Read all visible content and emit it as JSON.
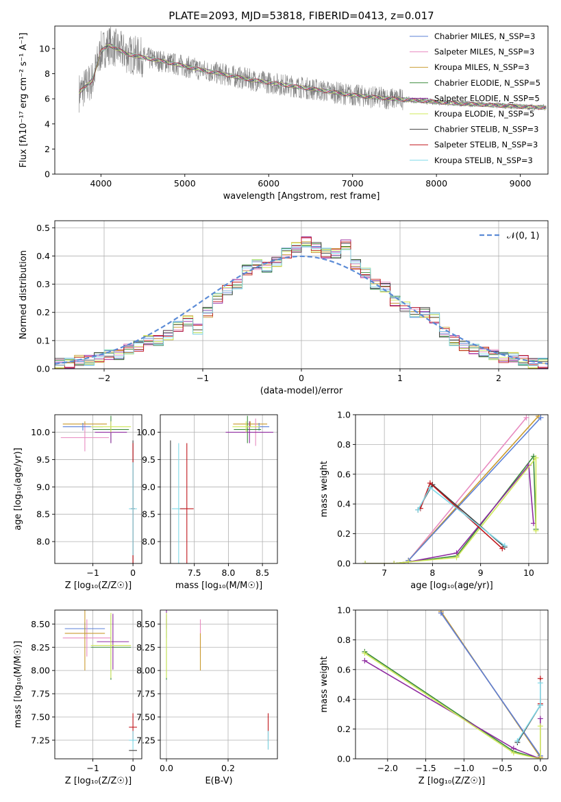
{
  "chart_data": [
    {
      "type": "line",
      "title": "PLATE=2093, MJD=53818, FIBERID=0413, z=0.017",
      "xlabel": "wavelength [Angstrom, rest frame]",
      "ylabel": "Flux [fλ10⁻¹⁷ erg cm⁻² s⁻¹ A⁻¹]",
      "xlim": [
        3450,
        9330
      ],
      "ylim": [
        0,
        11.8
      ],
      "xticks": [
        4000,
        5000,
        6000,
        7000,
        8000,
        9000
      ],
      "yticks": [
        0,
        2,
        4,
        6,
        8,
        10
      ],
      "grid": false,
      "legend_position": "top-right",
      "data_color": "#808080",
      "data_profile": {
        "x": [
          3740,
          3900,
          4000,
          4100,
          4300,
          4500,
          4800,
          5000,
          5200,
          5500,
          5800,
          6100,
          6400,
          6700,
          7000,
          7300,
          7600,
          7900,
          8200,
          8500,
          8800,
          9100,
          9310
        ],
        "y": [
          6.5,
          7.5,
          9.8,
          10.3,
          9.6,
          9.3,
          8.9,
          8.6,
          8.3,
          7.9,
          7.5,
          7.2,
          6.9,
          6.6,
          6.3,
          6.1,
          5.95,
          5.8,
          5.65,
          5.55,
          5.45,
          5.35,
          5.3
        ]
      },
      "series": [
        {
          "name": "Chabrier MILES, N_SSP=3",
          "color": "#5a7fd6"
        },
        {
          "name": "Salpeter MILES, N_SSP=3",
          "color": "#e88ac0"
        },
        {
          "name": "Kroupa MILES, N_SSP=3",
          "color": "#c99a2e"
        },
        {
          "name": "Chabrier ELODIE, N_SSP=5",
          "color": "#3a8a3a"
        },
        {
          "name": "Salpeter ELODIE, N_SSP=5",
          "color": "#8e2aa0"
        },
        {
          "name": "Kroupa ELODIE, N_SSP=5",
          "color": "#cfe85a"
        },
        {
          "name": "Chabrier STELIB, N_SSP=3",
          "color": "#404040"
        },
        {
          "name": "Salpeter STELIB, N_SSP=3",
          "color": "#c0151a"
        },
        {
          "name": "Kroupa STELIB, N_SSP=3",
          "color": "#7fd9e8"
        }
      ]
    },
    {
      "type": "line",
      "title": "",
      "xlabel": "(data-model)/error",
      "ylabel": "Normed distribution",
      "xlim": [
        -2.5,
        2.5
      ],
      "ylim": [
        0,
        0.525
      ],
      "xticks": [
        -2,
        -1,
        0,
        1,
        2
      ],
      "yticks": [
        0.0,
        0.1,
        0.2,
        0.3,
        0.4,
        0.5
      ],
      "grid": true,
      "legend_position": "top-right",
      "normal_curve": {
        "name": "𝒩(0, 1)",
        "color": "#5b8bd6",
        "mean": 0,
        "sd": 1
      },
      "bin_width": 0.1,
      "bin_left_edges": [
        -2.5,
        -2.4,
        -2.3,
        -2.2,
        -2.1,
        -2.0,
        -1.9,
        -1.8,
        -1.7,
        -1.6,
        -1.5,
        -1.4,
        -1.3,
        -1.2,
        -1.1,
        -1.0,
        -0.9,
        -0.8,
        -0.7,
        -0.6,
        -0.5,
        -0.4,
        -0.3,
        -0.2,
        -0.1,
        0.0,
        0.1,
        0.2,
        0.3,
        0.4,
        0.5,
        0.6,
        0.7,
        0.8,
        0.9,
        1.0,
        1.1,
        1.2,
        1.3,
        1.4,
        1.5,
        1.6,
        1.7,
        1.8,
        1.9,
        2.0,
        2.1,
        2.2,
        2.3,
        2.4
      ],
      "hist_values": [
        0.02,
        0.02,
        0.03,
        0.03,
        0.04,
        0.05,
        0.05,
        0.07,
        0.08,
        0.1,
        0.1,
        0.12,
        0.15,
        0.17,
        0.14,
        0.2,
        0.25,
        0.28,
        0.3,
        0.35,
        0.37,
        0.36,
        0.38,
        0.41,
        0.43,
        0.45,
        0.43,
        0.41,
        0.41,
        0.44,
        0.37,
        0.34,
        0.3,
        0.29,
        0.24,
        0.22,
        0.2,
        0.2,
        0.18,
        0.13,
        0.1,
        0.08,
        0.07,
        0.06,
        0.05,
        0.04,
        0.04,
        0.03,
        0.02,
        0.02
      ],
      "series_colors": [
        "#5a7fd6",
        "#e88ac0",
        "#c99a2e",
        "#3a8a3a",
        "#8e2aa0",
        "#cfe85a",
        "#404040",
        "#c0151a",
        "#7fd9e8"
      ]
    },
    {
      "type": "scatter",
      "title": "",
      "xlabel": "Z [log₁₀(Z/Z☉)]",
      "ylabel": "age  [log₁₀(age/yr)]",
      "xlim": [
        -1.95,
        0.22
      ],
      "ylim": [
        7.6,
        10.32
      ],
      "xticks": [
        -1,
        0
      ],
      "yticks": [
        8.0,
        8.5,
        9.0,
        9.5,
        10.0
      ],
      "grid": true,
      "error_bars": [
        {
          "color": "#c99a2e",
          "x": -1.2,
          "y": 10.15,
          "xerr": 0.55,
          "yerr": 0.05
        },
        {
          "color": "#e88ac0",
          "x": -1.2,
          "y": 9.9,
          "xerr": 0.6,
          "yerr": 0.25
        },
        {
          "color": "#5a7fd6",
          "x": -1.25,
          "y": 10.1,
          "xerr": 0.5,
          "yerr": 0.07
        },
        {
          "color": "#3a8a3a",
          "x": -0.55,
          "y": 10.05,
          "xerr": 0.45,
          "yerr": 0.25
        },
        {
          "color": "#8e2aa0",
          "x": -0.55,
          "y": 10.0,
          "xerr": 0.4,
          "yerr": 0.2
        },
        {
          "color": "#cfe85a",
          "x": -0.55,
          "y": 10.1,
          "xerr": 0.5,
          "yerr": 0.1
        },
        {
          "color": "#404040",
          "x": 0.0,
          "y": 8.6,
          "xerr": 0.05,
          "yerr": 1.25
        },
        {
          "color": "#c0151a",
          "x": 0.0,
          "y": 8.6,
          "xerr": 0.05,
          "yerr": 1.2
        },
        {
          "color": "#7fd9e8",
          "x": 0.0,
          "y": 8.6,
          "xerr": 0.1,
          "yerr": 0.85
        }
      ]
    },
    {
      "type": "scatter",
      "title": "",
      "xlabel": "mass [log₁₀(M/M☉)]",
      "ylabel": "",
      "xlim": [
        7.0,
        8.72
      ],
      "ylim": [
        7.6,
        10.32
      ],
      "xticks": [
        7.5,
        8.0,
        8.5
      ],
      "yticks": [
        8.0,
        8.5,
        9.0,
        9.5,
        10.0
      ],
      "grid": true,
      "error_bars": [
        {
          "color": "#404040",
          "x": 7.15,
          "y": 8.6,
          "xerr": 0.0,
          "yerr": 1.25
        },
        {
          "color": "#7fd9e8",
          "x": 7.27,
          "y": 8.6,
          "xerr": 0.1,
          "yerr": 1.2
        },
        {
          "color": "#c0151a",
          "x": 7.39,
          "y": 8.6,
          "xerr": 0.1,
          "yerr": 1.2
        },
        {
          "color": "#c99a2e",
          "x": 8.32,
          "y": 10.15,
          "xerr": 0.25,
          "yerr": 0.05
        },
        {
          "color": "#e88ac0",
          "x": 8.4,
          "y": 10.0,
          "xerr": 0.2,
          "yerr": 0.25
        },
        {
          "color": "#5a7fd6",
          "x": 8.45,
          "y": 10.1,
          "xerr": 0.15,
          "yerr": 0.07
        },
        {
          "color": "#3a8a3a",
          "x": 8.28,
          "y": 10.05,
          "xerr": 0.2,
          "yerr": 0.25
        },
        {
          "color": "#8e2aa0",
          "x": 8.31,
          "y": 10.0,
          "xerr": 0.35,
          "yerr": 0.2
        },
        {
          "color": "#cfe85a",
          "x": 8.26,
          "y": 10.1,
          "xerr": 0.2,
          "yerr": 0.1
        }
      ]
    },
    {
      "type": "line",
      "title": "",
      "xlabel": "age  [log₁₀(age/yr)]",
      "ylabel": "mass weight",
      "xlim": [
        6.4,
        10.4
      ],
      "ylim": [
        0,
        1.0
      ],
      "xticks": [
        7,
        8,
        9,
        10
      ],
      "yticks": [
        0.0,
        0.2,
        0.4,
        0.6,
        0.8,
        1.0
      ],
      "grid": true,
      "series": [
        {
          "color": "#e88ac0",
          "x": [
            7.5,
            9.95
          ],
          "y": [
            0.02,
            0.98
          ]
        },
        {
          "color": "#c99a2e",
          "x": [
            7.5,
            10.2
          ],
          "y": [
            0.02,
            0.99
          ]
        },
        {
          "color": "#5a7fd6",
          "x": [
            7.5,
            10.25
          ],
          "y": [
            0.02,
            0.98
          ]
        },
        {
          "color": "#3a8a3a",
          "x": [
            6.6,
            7.2,
            7.5,
            8.5,
            10.1,
            10.15
          ],
          "y": [
            0.0,
            0.0,
            0.01,
            0.05,
            0.72,
            0.23
          ]
        },
        {
          "color": "#8e2aa0",
          "x": [
            6.6,
            7.2,
            7.5,
            8.5,
            10.0,
            10.1
          ],
          "y": [
            0.0,
            0.0,
            0.01,
            0.07,
            0.66,
            0.27
          ]
        },
        {
          "color": "#cfe85a",
          "x": [
            6.6,
            7.2,
            7.5,
            8.5,
            10.15,
            10.15
          ],
          "y": [
            0.0,
            0.0,
            0.01,
            0.04,
            0.71,
            0.22
          ]
        },
        {
          "color": "#404040",
          "x": [
            7.7,
            8.0,
            9.5
          ],
          "y": [
            0.36,
            0.53,
            0.11
          ]
        },
        {
          "color": "#c0151a",
          "x": [
            7.75,
            7.95,
            9.45
          ],
          "y": [
            0.37,
            0.54,
            0.1
          ]
        },
        {
          "color": "#7fd9e8",
          "x": [
            7.7,
            7.95,
            9.5
          ],
          "y": [
            0.36,
            0.51,
            0.12
          ]
        }
      ]
    },
    {
      "type": "scatter",
      "title": "",
      "xlabel": "Z [log₁₀(Z/Z☉)]",
      "ylabel": "mass [log₁₀(M/M☉)]",
      "xlim": [
        -1.95,
        0.22
      ],
      "ylim": [
        7.05,
        8.65
      ],
      "xticks": [
        -1,
        0
      ],
      "yticks": [
        7.25,
        7.5,
        7.75,
        8.0,
        8.25,
        8.5
      ],
      "grid": true,
      "error_bars": [
        {
          "color": "#5a7fd6",
          "x": -1.2,
          "y": 8.45,
          "xerr": 0.5,
          "yerr": 0.07
        },
        {
          "color": "#e88ac0",
          "x": -1.15,
          "y": 8.35,
          "xerr": 0.6,
          "yerr": 0.2
        },
        {
          "color": "#c99a2e",
          "x": -1.2,
          "y": 8.4,
          "xerr": 0.5,
          "yerr": 0.4
        },
        {
          "color": "#3a8a3a",
          "x": -0.55,
          "y": 8.25,
          "xerr": 0.5,
          "yerr": 0.35
        },
        {
          "color": "#8e2aa0",
          "x": -0.5,
          "y": 8.31,
          "xerr": 0.4,
          "yerr": 0.3
        },
        {
          "color": "#cfe85a",
          "x": -0.55,
          "y": 8.27,
          "xerr": 0.5,
          "yerr": 0.35
        },
        {
          "color": "#404040",
          "x": 0.0,
          "y": 7.14,
          "xerr": 0.1,
          "yerr": 0.0
        },
        {
          "color": "#c0151a",
          "x": 0.0,
          "y": 7.39,
          "xerr": 0.1,
          "yerr": 0.15
        },
        {
          "color": "#7fd9e8",
          "x": 0.0,
          "y": 7.25,
          "xerr": 0.1,
          "yerr": 0.1
        }
      ]
    },
    {
      "type": "scatter",
      "title": "",
      "xlabel": "E(B-V)",
      "ylabel": "",
      "xlim": [
        -0.02,
        0.36
      ],
      "ylim": [
        7.05,
        8.65
      ],
      "xticks": [
        0.0,
        0.2
      ],
      "yticks": [
        7.25,
        7.5,
        7.75,
        8.0,
        8.25,
        8.5
      ],
      "grid": true,
      "error_bars": [
        {
          "color": "#5a7fd6",
          "x": 0.0,
          "y": 8.45,
          "xerr": 0.0,
          "yerr": 0.1
        },
        {
          "color": "#3a8a3a",
          "x": 0.0,
          "y": 8.25,
          "xerr": 0.0,
          "yerr": 0.35
        },
        {
          "color": "#8e2aa0",
          "x": 0.0,
          "y": 8.55,
          "xerr": 0.0,
          "yerr": 0.1
        },
        {
          "color": "#cfe85a",
          "x": 0.0,
          "y": 8.27,
          "xerr": 0.0,
          "yerr": 0.35
        },
        {
          "color": "#e88ac0",
          "x": 0.11,
          "y": 8.35,
          "xerr": 0.0,
          "yerr": 0.2
        },
        {
          "color": "#c99a2e",
          "x": 0.11,
          "y": 8.2,
          "xerr": 0.0,
          "yerr": 0.2
        },
        {
          "color": "#404040",
          "x": 0.33,
          "y": 7.25,
          "xerr": 0.0,
          "yerr": 0.1
        },
        {
          "color": "#c0151a",
          "x": 0.33,
          "y": 7.39,
          "xerr": 0.0,
          "yerr": 0.15
        },
        {
          "color": "#7fd9e8",
          "x": 0.33,
          "y": 7.25,
          "xerr": 0.0,
          "yerr": 0.1
        }
      ]
    },
    {
      "type": "line",
      "title": "",
      "xlabel": "Z [log₁₀(Z/Z☉)]",
      "ylabel": "mass weight",
      "xlim": [
        -2.42,
        0.1
      ],
      "ylim": [
        0,
        1.0
      ],
      "xticks": [
        -2.0,
        -1.5,
        -1.0,
        -0.5,
        0.0
      ],
      "yticks": [
        0.0,
        0.2,
        0.4,
        0.6,
        0.8,
        1.0
      ],
      "grid": true,
      "series": [
        {
          "color": "#e88ac0",
          "x": [
            -1.3,
            0.0
          ],
          "y": [
            0.98,
            0.02
          ]
        },
        {
          "color": "#c99a2e",
          "x": [
            -1.3,
            0.0
          ],
          "y": [
            0.99,
            0.01
          ]
        },
        {
          "color": "#5a7fd6",
          "x": [
            -1.3,
            0.0
          ],
          "y": [
            0.98,
            0.02
          ]
        },
        {
          "color": "#3a8a3a",
          "x": [
            -2.3,
            -0.35,
            0.0
          ],
          "y": [
            0.72,
            0.05,
            0.0
          ]
        },
        {
          "color": "#8e2aa0",
          "x": [
            -2.3,
            -0.35,
            0.0,
            0.0
          ],
          "y": [
            0.66,
            0.07,
            0.0,
            0.27
          ]
        },
        {
          "color": "#cfe85a",
          "x": [
            -2.3,
            -0.35,
            0.0,
            0.0
          ],
          "y": [
            0.71,
            0.04,
            0.0,
            0.22
          ]
        },
        {
          "color": "#404040",
          "x": [
            -0.3,
            0.0
          ],
          "y": [
            0.11,
            0.36
          ]
        },
        {
          "color": "#c0151a",
          "x": [
            0.0,
            0.0
          ],
          "y": [
            0.37,
            0.54
          ]
        },
        {
          "color": "#7fd9e8",
          "x": [
            -0.3,
            0.0,
            0.0
          ],
          "y": [
            0.12,
            0.36,
            0.51
          ]
        }
      ]
    }
  ]
}
